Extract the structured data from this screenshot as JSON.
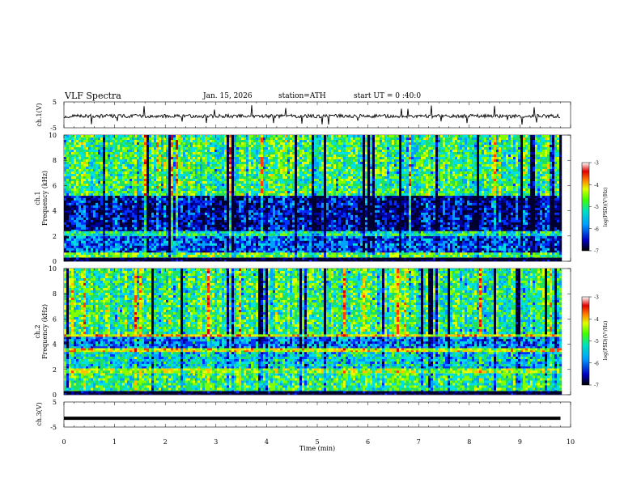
{
  "header": {
    "title": "VLF Spectra",
    "date": "Jan. 15, 2026",
    "station": "station=ATH",
    "start": "start UT =  0 :40:0"
  },
  "chart_data": [
    {
      "type": "line",
      "panel": "ch1-waveform",
      "ylabel": "ch.1(V)",
      "ylim": [
        -5,
        5
      ],
      "yticks": [
        5,
        -5
      ],
      "xlim": [
        0,
        10
      ],
      "series": [
        {
          "values_summary": "fluctuating around -0.5 V with spikes to about ±4 V",
          "baseline": -0.5
        }
      ],
      "color": "#000000"
    },
    {
      "type": "heatmap",
      "panel": "ch1-spectrogram",
      "ylabel": "ch.1\nFrequency (kHz)",
      "ylabel_parts": [
        "ch.1",
        "Frequency (kHz)"
      ],
      "ylim": [
        0,
        10
      ],
      "yticks": [
        0,
        2,
        4,
        6,
        8,
        10
      ],
      "xlim": [
        0,
        9.8
      ],
      "colorbar": {
        "label": "log(PSD)(V²/Hz)",
        "ticks": [
          -3,
          -4,
          -5,
          -6,
          -7
        ],
        "range": [
          -7,
          -3
        ]
      },
      "bands": [
        {
          "from": 0,
          "to": 0.3,
          "level": -7
        },
        {
          "from": 0.3,
          "to": 0.7,
          "level": -4.8
        },
        {
          "from": 0.7,
          "to": 2.0,
          "level": -6.0
        },
        {
          "from": 2.0,
          "to": 2.4,
          "level": -5.2
        },
        {
          "from": 2.4,
          "to": 5.2,
          "level": -6.4
        },
        {
          "from": 5.2,
          "to": 10,
          "level": -5.0
        }
      ]
    },
    {
      "type": "heatmap",
      "panel": "ch2-spectrogram",
      "ylabel": "ch.2\nFrequency (kHz)",
      "ylabel_parts": [
        "ch.2",
        "Frequency (kHz)"
      ],
      "ylim": [
        0,
        10
      ],
      "yticks": [
        0,
        2,
        4,
        6,
        8,
        10
      ],
      "xlim": [
        0,
        9.8
      ],
      "colorbar": {
        "label": "log(PSD)(V²/Hz)",
        "ticks": [
          -3,
          -4,
          -5,
          -6,
          -7
        ],
        "range": [
          -7,
          -3
        ]
      },
      "bands": [
        {
          "from": 0,
          "to": 0.3,
          "level": -7
        },
        {
          "from": 0.3,
          "to": 1.7,
          "level": -5.0
        },
        {
          "from": 1.7,
          "to": 2.1,
          "level": -4.5
        },
        {
          "from": 2.1,
          "to": 3.4,
          "level": -5.4
        },
        {
          "from": 3.4,
          "to": 3.7,
          "level": -4.2
        },
        {
          "from": 3.7,
          "to": 4.6,
          "level": -5.8
        },
        {
          "from": 4.6,
          "to": 4.8,
          "level": -4.0
        },
        {
          "from": 4.8,
          "to": 10,
          "level": -5.0
        }
      ]
    },
    {
      "type": "line",
      "panel": "ch3-waveform",
      "ylabel": "ch.3(V)",
      "ylim": [
        -5,
        5
      ],
      "yticks": [
        5,
        0,
        -5
      ],
      "ytick_labels": [
        "5",
        "",
        "-5"
      ],
      "xlim": [
        0,
        10
      ],
      "xlabel": "Time (min)",
      "xticks": [
        0,
        1,
        2,
        3,
        4,
        5,
        6,
        7,
        8,
        9,
        10
      ],
      "series": [
        {
          "values_summary": "flat trace near -1.5 V",
          "baseline": -1.5
        }
      ],
      "color": "#000000"
    }
  ],
  "palette": [
    "#000030",
    "#0000a0",
    "#0030ff",
    "#00a0ff",
    "#00e0e0",
    "#20e060",
    "#80ff00",
    "#e0ff00",
    "#ffc000",
    "#ff4000",
    "#d00000",
    "#ffe0e0",
    "#ffffff"
  ]
}
